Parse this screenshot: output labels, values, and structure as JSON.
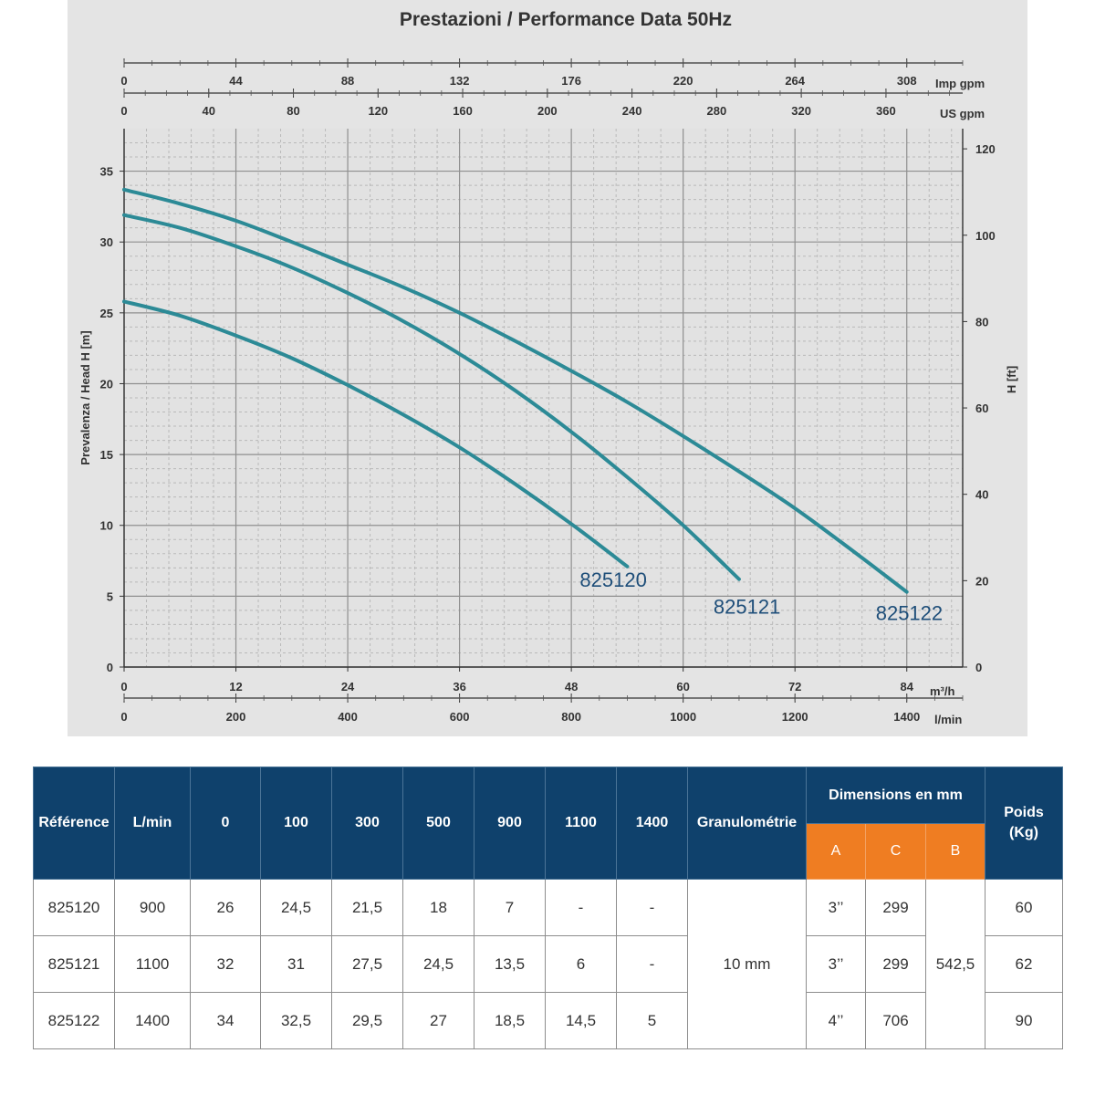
{
  "chart_data": {
    "type": "line",
    "title": "Prestazioni / Performance Data 50Hz",
    "ylabel": "Prevalenza / Head H [m]",
    "ylabel_right": "H [ft]",
    "xlim": [
      0,
      90
    ],
    "ylim": [
      0,
      38
    ],
    "grid": true,
    "x_primary": {
      "unit": "m³/h",
      "ticks": [
        "0",
        "12",
        "24",
        "36",
        "48",
        "60",
        "72",
        "84"
      ]
    },
    "x_lmin": {
      "unit": "l/min",
      "ticks": [
        "0",
        "200",
        "400",
        "600",
        "800",
        "1000",
        "1200",
        "1400"
      ]
    },
    "x_top_imp": {
      "unit": "Imp gpm",
      "ticks": [
        "0",
        "44",
        "88",
        "132",
        "176",
        "220",
        "264",
        "308"
      ]
    },
    "x_top_us": {
      "unit": "US gpm",
      "ticks": [
        "0",
        "40",
        "80",
        "120",
        "160",
        "200",
        "240",
        "280",
        "320",
        "360"
      ]
    },
    "y_ticks": [
      "0",
      "5",
      "10",
      "15",
      "20",
      "25",
      "30",
      "35"
    ],
    "y_right_ticks": [
      "0",
      "20",
      "40",
      "60",
      "80",
      "100",
      "120"
    ],
    "series": [
      {
        "name": "825120",
        "color": "#2c8a96",
        "x": [
          0,
          6,
          12,
          18,
          24,
          30,
          36,
          42,
          48,
          54
        ],
        "y": [
          25.8,
          24.8,
          23.4,
          21.8,
          19.9,
          17.8,
          15.5,
          12.9,
          10.1,
          7.1
        ]
      },
      {
        "name": "825121",
        "color": "#2c8a96",
        "x": [
          0,
          6,
          12,
          18,
          24,
          30,
          36,
          42,
          48,
          54,
          60,
          66
        ],
        "y": [
          31.9,
          31.0,
          29.7,
          28.2,
          26.4,
          24.4,
          22.1,
          19.5,
          16.6,
          13.4,
          10.0,
          6.2
        ]
      },
      {
        "name": "825122",
        "color": "#2c8a96",
        "x": [
          0,
          6,
          12,
          18,
          24,
          30,
          36,
          42,
          48,
          54,
          60,
          66,
          72,
          78,
          84
        ],
        "y": [
          33.7,
          32.7,
          31.5,
          30.0,
          28.4,
          26.8,
          25.0,
          23.0,
          20.9,
          18.7,
          16.3,
          13.8,
          11.2,
          8.3,
          5.3
        ]
      }
    ]
  },
  "table": {
    "headers": {
      "reference": "Référence",
      "lmin": "L/min",
      "flows": [
        "0",
        "100",
        "300",
        "500",
        "900",
        "1100",
        "1400"
      ],
      "granulometry": "Granulométrie",
      "dimensions": "Dimensions en mm",
      "dim_a": "A",
      "dim_c": "C",
      "dim_b": "B",
      "weight": "Poids (Kg)"
    },
    "granulometry_value": "10 mm",
    "dim_b_value": "542,5",
    "rows": [
      {
        "reference": "825120",
        "lmin": "900",
        "values": [
          "26",
          "24,5",
          "21,5",
          "18",
          "7",
          "-",
          "-"
        ],
        "a": "3’’",
        "c": "299",
        "weight": "60"
      },
      {
        "reference": "825121",
        "lmin": "1100",
        "values": [
          "32",
          "31",
          "27,5",
          "24,5",
          "13,5",
          "6",
          "-"
        ],
        "a": "3’’",
        "c": "299",
        "weight": "62"
      },
      {
        "reference": "825122",
        "lmin": "1400",
        "values": [
          "34",
          "32,5",
          "29,5",
          "27",
          "18,5",
          "14,5",
          "5"
        ],
        "a": "4’’",
        "c": "706",
        "weight": "90"
      }
    ]
  }
}
